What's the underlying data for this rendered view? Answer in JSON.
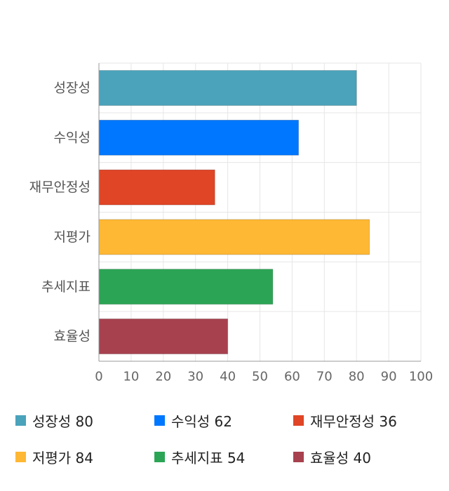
{
  "chart_data": {
    "type": "bar",
    "orientation": "horizontal",
    "categories": [
      "성장성",
      "수익성",
      "재무안정성",
      "저평가",
      "추세지표",
      "효율성"
    ],
    "values": [
      80,
      62,
      36,
      84,
      54,
      40
    ],
    "colors": [
      "#4aa3bb",
      "#0077ff",
      "#e04526",
      "#ffb833",
      "#2ba555",
      "#a8414e"
    ],
    "xlim": [
      0,
      100
    ],
    "xticks": [
      0,
      10,
      20,
      30,
      40,
      50,
      60,
      70,
      80,
      90,
      100
    ],
    "grid": true,
    "legend_position": "bottom",
    "legend": [
      {
        "label": "성장성 80",
        "color": "#4aa3bb"
      },
      {
        "label": "수익성 62",
        "color": "#0077ff"
      },
      {
        "label": "재무안정성 36",
        "color": "#e04526"
      },
      {
        "label": "저평가 84",
        "color": "#ffb833"
      },
      {
        "label": "추세지표 54",
        "color": "#2ba555"
      },
      {
        "label": "효율성 40",
        "color": "#a8414e"
      }
    ]
  }
}
